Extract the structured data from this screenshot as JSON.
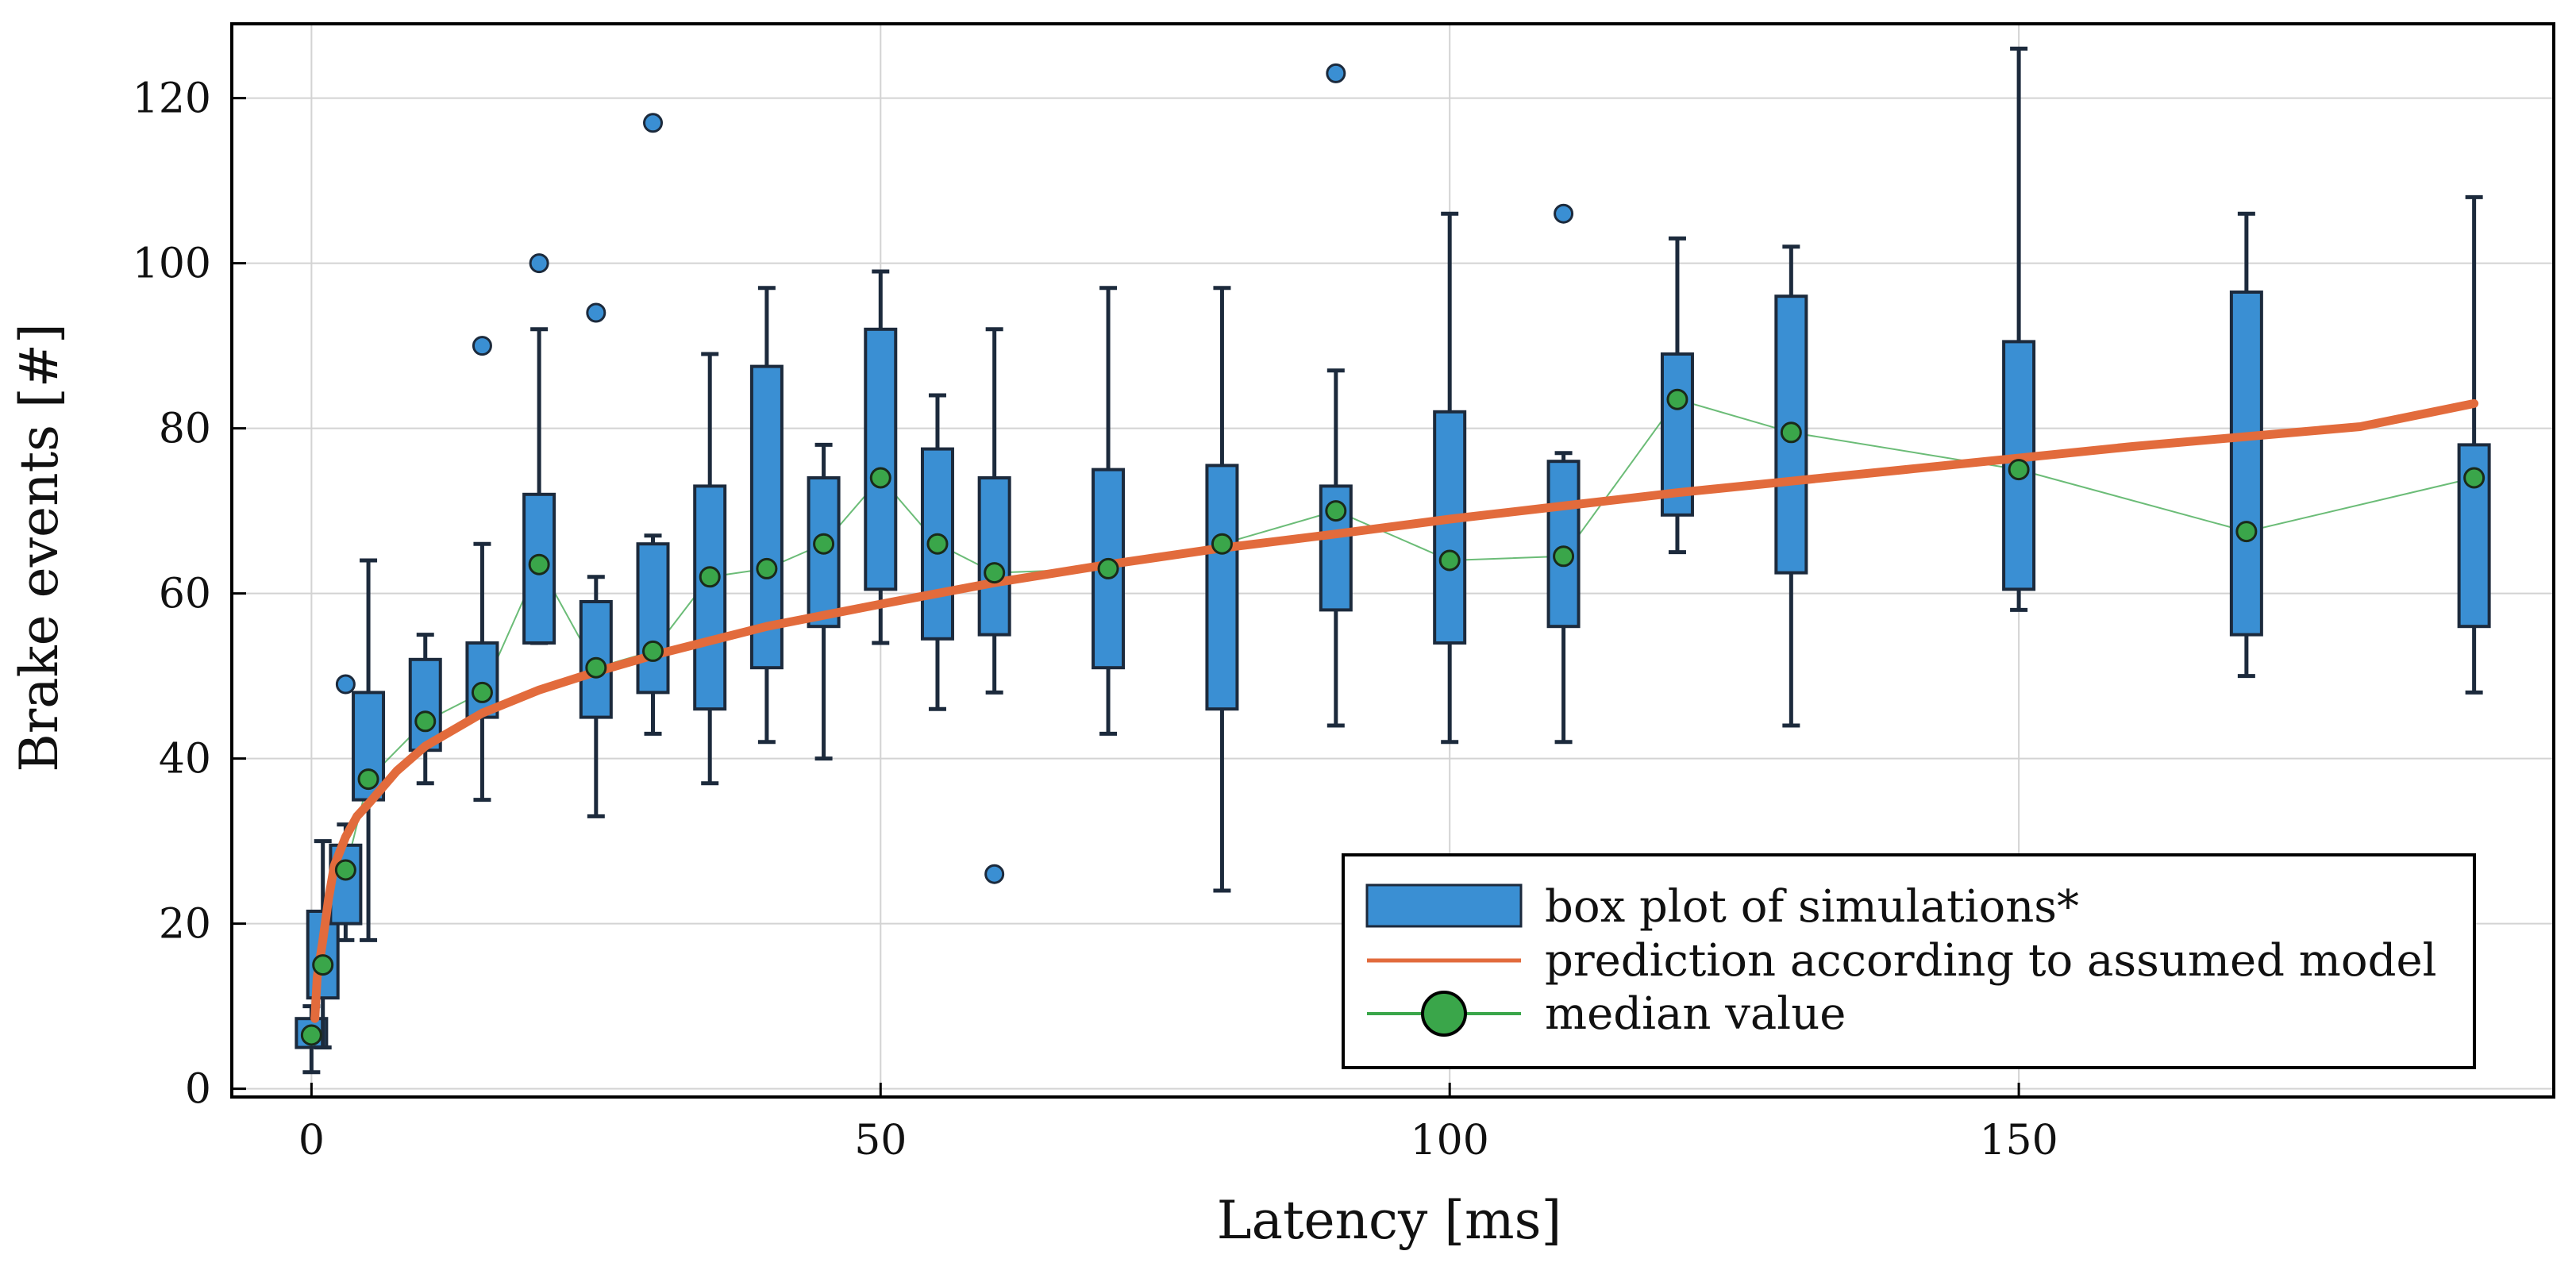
{
  "chart_data": {
    "type": "box",
    "xlabel": "Latency [ms]",
    "ylabel": "Brake events [#]",
    "xlim": [
      -7,
      197
    ],
    "ylim": [
      -1,
      129
    ],
    "xticks": [
      0,
      50,
      100,
      150
    ],
    "yticks": [
      0,
      20,
      40,
      60,
      80,
      100,
      120
    ],
    "grid": true,
    "legend": {
      "position": "bottom-right",
      "entries": [
        {
          "kind": "box",
          "label": "box plot of simulations*"
        },
        {
          "kind": "line",
          "label": "prediction according to assumed model"
        },
        {
          "kind": "marker-line",
          "label": "median value"
        }
      ]
    },
    "colors": {
      "box_fill": "#3a8fd3",
      "box_edge": "#1c2a3c",
      "prediction": "#e26b3c",
      "median": "#3aa64a",
      "grid": "#d3d3d3",
      "frame": "#000000"
    },
    "boxes": [
      {
        "x": 0,
        "min": 2,
        "q1": 5,
        "median": 6.5,
        "q3": 8.5,
        "max": 10,
        "outliers": []
      },
      {
        "x": 1,
        "min": 5,
        "q1": 11,
        "median": 15,
        "q3": 21.5,
        "max": 30,
        "outliers": []
      },
      {
        "x": 3,
        "min": 18,
        "q1": 20,
        "median": 26.5,
        "q3": 29.5,
        "max": 32,
        "outliers": [
          49
        ]
      },
      {
        "x": 5,
        "min": 18,
        "q1": 35,
        "median": 37.5,
        "q3": 48,
        "max": 64,
        "outliers": []
      },
      {
        "x": 10,
        "min": 37,
        "q1": 41,
        "median": 44.5,
        "q3": 52,
        "max": 55,
        "outliers": []
      },
      {
        "x": 15,
        "min": 35,
        "q1": 45,
        "median": 48,
        "q3": 54,
        "max": 66,
        "outliers": [
          90
        ]
      },
      {
        "x": 20,
        "min": 54,
        "q1": 54,
        "median": 63.5,
        "q3": 72,
        "max": 92,
        "outliers": [
          100
        ]
      },
      {
        "x": 25,
        "min": 33,
        "q1": 45,
        "median": 51,
        "q3": 59,
        "max": 62,
        "outliers": [
          94
        ]
      },
      {
        "x": 30,
        "min": 43,
        "q1": 48,
        "median": 53,
        "q3": 66,
        "max": 67,
        "outliers": [
          117
        ]
      },
      {
        "x": 35,
        "min": 37,
        "q1": 46,
        "median": 62,
        "q3": 73,
        "max": 89,
        "outliers": []
      },
      {
        "x": 40,
        "min": 42,
        "q1": 51,
        "median": 63,
        "q3": 87.5,
        "max": 97,
        "outliers": []
      },
      {
        "x": 45,
        "min": 40,
        "q1": 56,
        "median": 66,
        "q3": 74,
        "max": 78,
        "outliers": []
      },
      {
        "x": 50,
        "min": 54,
        "q1": 60.5,
        "median": 74,
        "q3": 92,
        "max": 99,
        "outliers": []
      },
      {
        "x": 55,
        "min": 46,
        "q1": 54.5,
        "median": 66,
        "q3": 77.5,
        "max": 84,
        "outliers": []
      },
      {
        "x": 60,
        "min": 48,
        "q1": 55,
        "median": 62.5,
        "q3": 74,
        "max": 92,
        "outliers": [
          26
        ]
      },
      {
        "x": 70,
        "min": 43,
        "q1": 51,
        "median": 63,
        "q3": 75,
        "max": 97,
        "outliers": []
      },
      {
        "x": 80,
        "min": 24,
        "q1": 46,
        "median": 66,
        "q3": 75.5,
        "max": 97,
        "outliers": []
      },
      {
        "x": 90,
        "min": 44,
        "q1": 58,
        "median": 70,
        "q3": 73,
        "max": 87,
        "outliers": [
          123
        ]
      },
      {
        "x": 100,
        "min": 42,
        "q1": 54,
        "median": 64,
        "q3": 82,
        "max": 106,
        "outliers": []
      },
      {
        "x": 110,
        "min": 42,
        "q1": 56,
        "median": 64.5,
        "q3": 76,
        "max": 77,
        "outliers": [
          106
        ]
      },
      {
        "x": 120,
        "min": 65,
        "q1": 69.5,
        "median": 83.5,
        "q3": 89,
        "max": 103,
        "outliers": []
      },
      {
        "x": 130,
        "min": 44,
        "q1": 62.5,
        "median": 79.5,
        "q3": 96,
        "max": 102,
        "outliers": []
      },
      {
        "x": 150,
        "min": 58,
        "q1": 60.5,
        "median": 75,
        "q3": 90.5,
        "max": 126,
        "outliers": []
      },
      {
        "x": 170,
        "min": 50,
        "q1": 55,
        "median": 67.5,
        "q3": 96.5,
        "max": 106,
        "outliers": []
      },
      {
        "x": 190,
        "min": 48,
        "q1": 56,
        "median": 74,
        "q3": 78,
        "max": 108,
        "outliers": []
      }
    ],
    "prediction_curve": {
      "x": [
        0.3,
        0.5,
        1,
        1.5,
        2,
        3,
        4,
        5,
        7.5,
        10,
        15,
        20,
        25,
        30,
        40,
        50,
        60,
        70,
        80,
        90,
        100,
        110,
        120,
        130,
        140,
        150,
        160,
        170,
        180,
        190
      ],
      "y": [
        8.5,
        13.5,
        18,
        23,
        27,
        30.5,
        33,
        34.5,
        38.5,
        41.5,
        45.5,
        48.3,
        50.5,
        52.5,
        56,
        58.7,
        61.3,
        63.5,
        65.5,
        67.2,
        69,
        70.6,
        72.2,
        73.6,
        75,
        76.4,
        77.8,
        79,
        80.2,
        83
      ]
    }
  }
}
